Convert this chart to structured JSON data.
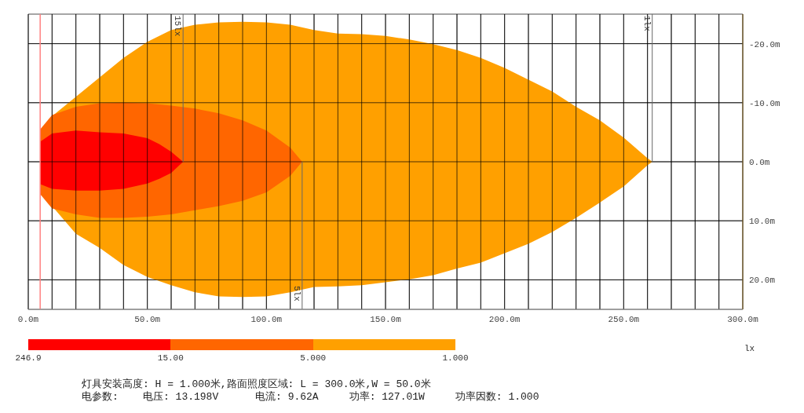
{
  "chart_data": {
    "type": "area",
    "xlim": [
      0,
      300
    ],
    "xticks": [
      {
        "value": 0,
        "label": "0.0m"
      },
      {
        "value": 10,
        "label": null
      },
      {
        "value": 20,
        "label": null
      },
      {
        "value": 30,
        "label": null
      },
      {
        "value": 40,
        "label": null
      },
      {
        "value": 50,
        "label": "50.0m"
      },
      {
        "value": 60,
        "label": null
      },
      {
        "value": 70,
        "label": null
      },
      {
        "value": 80,
        "label": null
      },
      {
        "value": 90,
        "label": null
      },
      {
        "value": 100,
        "label": "100.0m"
      },
      {
        "value": 110,
        "label": null
      },
      {
        "value": 120,
        "label": null
      },
      {
        "value": 130,
        "label": null
      },
      {
        "value": 140,
        "label": null
      },
      {
        "value": 150,
        "label": "150.0m"
      },
      {
        "value": 160,
        "label": null
      },
      {
        "value": 170,
        "label": null
      },
      {
        "value": 180,
        "label": null
      },
      {
        "value": 190,
        "label": null
      },
      {
        "value": 200,
        "label": "200.0m"
      },
      {
        "value": 210,
        "label": null
      },
      {
        "value": 220,
        "label": null
      },
      {
        "value": 230,
        "label": null
      },
      {
        "value": 240,
        "label": null
      },
      {
        "value": 250,
        "label": "250.0m"
      },
      {
        "value": 260,
        "label": null
      },
      {
        "value": 270,
        "label": null
      },
      {
        "value": 280,
        "label": null
      },
      {
        "value": 290,
        "label": null
      },
      {
        "value": 300,
        "label": "300.0m"
      }
    ],
    "ylim": [
      25,
      -25
    ],
    "yticks": [
      {
        "value": -20,
        "label": "-20.0m"
      },
      {
        "value": -10,
        "label": "-10.0m"
      },
      {
        "value": 0,
        "label": "0.0m"
      },
      {
        "value": 10,
        "label": "10.0m"
      },
      {
        "value": 20,
        "label": "20.0m"
      }
    ],
    "grid": true,
    "series": [
      {
        "color": "#ffa000",
        "x": [
          5,
          10,
          20,
          30,
          40,
          50,
          60,
          70,
          80,
          90,
          100,
          110,
          120,
          130,
          140,
          150,
          160,
          170,
          180,
          190,
          200,
          210,
          220,
          230,
          240,
          250,
          260,
          262
        ],
        "values": [
          -4.4,
          -7.7,
          -11,
          -14.3,
          -17.6,
          -20.3,
          -22.3,
          -23.2,
          -23.6,
          -23.7,
          -23.6,
          -23.2,
          -22.3,
          -21.7,
          -21.6,
          -21.3,
          -20.7,
          -19.9,
          -18.9,
          -17.6,
          -15.9,
          -13.9,
          -11.9,
          -9.3,
          -7,
          -4.1,
          -0.6,
          0
        ]
      },
      {
        "color": "#ffa000",
        "x": [
          5,
          10,
          20,
          30,
          40,
          50,
          60,
          70,
          80,
          90,
          100,
          110,
          120,
          130,
          140,
          150,
          160,
          170,
          180,
          190,
          200,
          210,
          220,
          230,
          240,
          250,
          260,
          262
        ],
        "values": [
          4.9,
          7.5,
          12.2,
          14.6,
          17.5,
          19.5,
          20.9,
          22.1,
          22.8,
          22.9,
          22.8,
          22.1,
          21.2,
          21.1,
          20.9,
          20.4,
          19.9,
          19.2,
          18.1,
          17.1,
          15.5,
          13.9,
          11.9,
          9.5,
          6.9,
          4.2,
          0.6,
          0
        ]
      },
      {
        "color": "#ff6600",
        "x": [
          5,
          10,
          20,
          30,
          40,
          50,
          60,
          70,
          80,
          90,
          100,
          110,
          115
        ],
        "values": [
          -5.5,
          -7.9,
          -9.3,
          -9.9,
          -10,
          -9.9,
          -9.5,
          -9,
          -8.2,
          -7,
          -5.3,
          -2.4,
          0
        ]
      },
      {
        "color": "#ff6600",
        "x": [
          5,
          10,
          20,
          30,
          40,
          50,
          60,
          70,
          80,
          90,
          100,
          110,
          115
        ],
        "values": [
          5.5,
          7.9,
          8.9,
          9.5,
          9.5,
          9.3,
          8.9,
          8.2,
          7.5,
          6.6,
          5.2,
          2.4,
          0
        ]
      },
      {
        "color": "#ff0000",
        "x": [
          5,
          10,
          20,
          30,
          40,
          50,
          55,
          60,
          65
        ],
        "values": [
          -3.4,
          -4.8,
          -5.3,
          -5,
          -4.8,
          -4,
          -3,
          -1.7,
          0
        ]
      },
      {
        "color": "#ff0000",
        "x": [
          5,
          10,
          20,
          30,
          40,
          50,
          55,
          60,
          65
        ],
        "values": [
          3.8,
          4.6,
          4.9,
          4.9,
          4.6,
          3.7,
          2.9,
          1.9,
          0
        ]
      }
    ],
    "ref_lines": [
      {
        "axis": "x",
        "value": 5,
        "color": "#ff8080"
      }
    ],
    "annotations": [
      {
        "text": "15lx",
        "x": 65,
        "y": 0
      },
      {
        "text": "5lx",
        "x": 115,
        "y": 0
      },
      {
        "text": "1lx",
        "x": 262,
        "y": 0
      },
      "246.9",
      "15.00",
      "5.000",
      "1.000",
      "灯具安装高度: H = 1.000米,路面照度区域: L = 300.0米,W = 50.0米",
      "电参数:    电压: 13.198V      电流: 9.62A     功率: 127.01W     功率因数: 1.000"
    ],
    "clabel": "lx"
  }
}
